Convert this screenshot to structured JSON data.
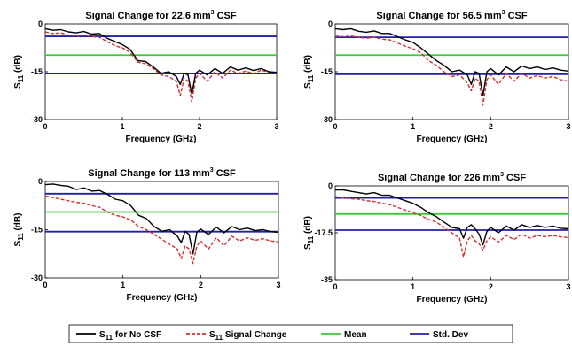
{
  "colors": {
    "no_csf": "#000000",
    "signal_change": "#d0312d",
    "mean": "#33cc33",
    "std_dev": "#1f1fa8"
  },
  "legend": {
    "placement": "bottom",
    "entries": [
      {
        "key": "no_csf",
        "label_main": "S",
        "label_sub": "11",
        "label_rest": " for No CSF"
      },
      {
        "key": "signal_change",
        "label_main": "S",
        "label_sub": "11",
        "label_rest": " Signal Change"
      },
      {
        "key": "mean",
        "label": "Mean"
      },
      {
        "key": "std_dev",
        "label": "Std. Dev"
      }
    ]
  },
  "chart_data": [
    {
      "type": "line",
      "title_prefix": "Signal Change for 22.6 mm",
      "title_sup": "3",
      "title_suffix": " CSF",
      "xlabel": "Frequency (GHz)",
      "ylabel_main": "S",
      "ylabel_sub": "11",
      "ylabel_rest": " (dB)",
      "xlim": [
        0,
        3
      ],
      "ylim": [
        -30,
        0
      ],
      "xticks": [
        0,
        1,
        2,
        3
      ],
      "yticks": [
        0,
        -15,
        -30
      ],
      "ytick_labels": [
        "0",
        "-15",
        "-30"
      ],
      "hlines": {
        "mean": -9.8,
        "std_dev_upper": -3.9,
        "std_dev_lower": -15.6
      },
      "series": [
        {
          "key": "no_csf",
          "style": "solid",
          "x": [
            0,
            0.1,
            0.2,
            0.3,
            0.4,
            0.5,
            0.6,
            0.7,
            0.8,
            0.9,
            1.0,
            1.1,
            1.2,
            1.3,
            1.4,
            1.5,
            1.6,
            1.7,
            1.75,
            1.8,
            1.85,
            1.9,
            1.95,
            2.0,
            2.1,
            2.2,
            2.3,
            2.4,
            2.5,
            2.6,
            2.7,
            2.8,
            2.9,
            3.0
          ],
          "y": [
            -1.5,
            -2.0,
            -1.8,
            -2.5,
            -2.8,
            -2.4,
            -3.2,
            -3.0,
            -4.5,
            -5.5,
            -6.5,
            -8.0,
            -11.5,
            -11.8,
            -13.5,
            -15.5,
            -15.0,
            -16.5,
            -19.0,
            -15.5,
            -16.0,
            -22.0,
            -15.5,
            -14.5,
            -16.0,
            -14.0,
            -15.5,
            -13.5,
            -14.5,
            -13.8,
            -14.6,
            -14.0,
            -15.0,
            -15.2
          ]
        },
        {
          "key": "signal_change",
          "style": "dashed",
          "x": [
            0,
            0.1,
            0.2,
            0.3,
            0.4,
            0.5,
            0.6,
            0.7,
            0.8,
            0.9,
            1.0,
            1.1,
            1.2,
            1.3,
            1.4,
            1.5,
            1.6,
            1.7,
            1.75,
            1.8,
            1.85,
            1.9,
            1.95,
            2.0,
            2.1,
            2.2,
            2.3,
            2.4,
            2.5,
            2.6,
            2.7,
            2.8,
            2.9,
            3.0
          ],
          "y": [
            -2.5,
            -3.0,
            -2.8,
            -3.5,
            -3.8,
            -3.5,
            -4.0,
            -4.2,
            -5.5,
            -6.8,
            -7.5,
            -9.0,
            -12.0,
            -12.5,
            -14.0,
            -16.0,
            -16.5,
            -18.0,
            -22.5,
            -17.0,
            -18.0,
            -24.5,
            -17.0,
            -15.5,
            -18.0,
            -15.0,
            -17.0,
            -14.5,
            -15.5,
            -14.8,
            -15.6,
            -14.5,
            -15.2,
            -15.5
          ]
        }
      ]
    },
    {
      "type": "line",
      "title_prefix": "Signal Change for 56.5 mm",
      "title_sup": "3",
      "title_suffix": " CSF",
      "xlabel": "Frequency (GHz)",
      "ylabel_main": "S",
      "ylabel_sub": "11",
      "ylabel_rest": " (dB)",
      "xlim": [
        0,
        3
      ],
      "ylim": [
        -30,
        0
      ],
      "xticks": [
        0,
        1,
        2,
        3
      ],
      "yticks": [
        0,
        -15,
        -30
      ],
      "ytick_labels": [
        "0",
        "-15",
        "-30"
      ],
      "hlines": {
        "mean": -9.8,
        "std_dev_upper": -4.2,
        "std_dev_lower": -15.8
      },
      "series": [
        {
          "key": "no_csf",
          "style": "solid",
          "x": [
            0,
            0.1,
            0.2,
            0.3,
            0.4,
            0.5,
            0.6,
            0.7,
            0.8,
            0.9,
            1.0,
            1.1,
            1.2,
            1.3,
            1.4,
            1.5,
            1.6,
            1.7,
            1.75,
            1.8,
            1.85,
            1.9,
            1.95,
            2.0,
            2.1,
            2.2,
            2.3,
            2.4,
            2.5,
            2.6,
            2.7,
            2.8,
            2.9,
            3.0
          ],
          "y": [
            -1.5,
            -1.8,
            -1.5,
            -2.3,
            -2.6,
            -2.2,
            -3.0,
            -3.0,
            -4.0,
            -5.0,
            -5.8,
            -7.5,
            -9.5,
            -11.5,
            -13.0,
            -15.0,
            -14.5,
            -16.0,
            -19.0,
            -15.0,
            -15.5,
            -22.5,
            -15.0,
            -14.0,
            -16.0,
            -13.5,
            -15.0,
            -13.2,
            -14.0,
            -13.5,
            -14.3,
            -13.8,
            -14.5,
            -14.8
          ]
        },
        {
          "key": "signal_change",
          "style": "dashed",
          "x": [
            0,
            0.1,
            0.2,
            0.3,
            0.4,
            0.5,
            0.6,
            0.7,
            0.8,
            0.9,
            1.0,
            1.1,
            1.2,
            1.3,
            1.4,
            1.5,
            1.6,
            1.7,
            1.75,
            1.8,
            1.85,
            1.9,
            1.95,
            2.0,
            2.1,
            2.2,
            2.3,
            2.4,
            2.5,
            2.6,
            2.7,
            2.8,
            2.9,
            3.0
          ],
          "y": [
            -3.5,
            -4.0,
            -3.8,
            -4.2,
            -4.5,
            -4.2,
            -4.8,
            -5.0,
            -6.0,
            -7.0,
            -7.8,
            -9.0,
            -11.5,
            -13.0,
            -15.0,
            -16.5,
            -16.0,
            -18.5,
            -21.0,
            -17.0,
            -18.0,
            -25.5,
            -17.5,
            -16.0,
            -19.0,
            -15.5,
            -18.0,
            -15.5,
            -17.0,
            -16.2,
            -17.0,
            -16.5,
            -17.5,
            -18.0
          ]
        }
      ]
    },
    {
      "type": "line",
      "title_prefix": "Signal Change for 113 mm",
      "title_sup": "3",
      "title_suffix": " CSF",
      "xlabel": "Frequency (GHz)",
      "ylabel_main": "S",
      "ylabel_sub": "11",
      "ylabel_rest": " (dB)",
      "xlim": [
        0,
        3
      ],
      "ylim": [
        -30,
        0
      ],
      "xticks": [
        0,
        1,
        2,
        3
      ],
      "yticks": [
        0,
        -15,
        -30
      ],
      "ytick_labels": [
        "0",
        "-15",
        "-30"
      ],
      "hlines": {
        "mean": -9.5,
        "std_dev_upper": -3.8,
        "std_dev_lower": -15.6
      },
      "series": [
        {
          "key": "no_csf",
          "style": "solid",
          "x": [
            0,
            0.1,
            0.2,
            0.3,
            0.4,
            0.5,
            0.6,
            0.7,
            0.8,
            0.9,
            1.0,
            1.1,
            1.2,
            1.3,
            1.4,
            1.5,
            1.6,
            1.7,
            1.75,
            1.8,
            1.85,
            1.9,
            1.95,
            2.0,
            2.1,
            2.2,
            2.3,
            2.4,
            2.5,
            2.6,
            2.7,
            2.8,
            2.9,
            3.0
          ],
          "y": [
            -1.0,
            -0.8,
            -1.2,
            -1.5,
            -2.5,
            -2.0,
            -3.0,
            -2.8,
            -4.0,
            -5.5,
            -6.0,
            -7.5,
            -10.5,
            -11.5,
            -14.0,
            -15.5,
            -15.0,
            -17.0,
            -19.0,
            -15.5,
            -16.5,
            -22.5,
            -15.8,
            -14.8,
            -16.5,
            -14.2,
            -16.0,
            -14.0,
            -15.0,
            -14.5,
            -15.3,
            -15.0,
            -15.6,
            -15.8
          ]
        },
        {
          "key": "signal_change",
          "style": "dashed",
          "x": [
            0,
            0.1,
            0.2,
            0.3,
            0.4,
            0.5,
            0.6,
            0.7,
            0.8,
            0.9,
            1.0,
            1.1,
            1.2,
            1.3,
            1.4,
            1.5,
            1.6,
            1.7,
            1.75,
            1.8,
            1.85,
            1.9,
            1.95,
            2.0,
            2.1,
            2.2,
            2.3,
            2.4,
            2.5,
            2.6,
            2.7,
            2.8,
            2.9,
            3.0
          ],
          "y": [
            -4.5,
            -5.0,
            -5.5,
            -6.0,
            -6.5,
            -6.8,
            -7.5,
            -8.0,
            -9.5,
            -10.5,
            -11.0,
            -12.0,
            -14.0,
            -15.0,
            -16.5,
            -18.0,
            -19.5,
            -21.0,
            -24.0,
            -20.0,
            -21.0,
            -25.5,
            -20.0,
            -18.5,
            -21.0,
            -17.5,
            -20.0,
            -17.0,
            -18.5,
            -17.5,
            -18.3,
            -17.8,
            -18.5,
            -18.8
          ]
        }
      ]
    },
    {
      "type": "line",
      "title_prefix": "Signal Change for 226 mm",
      "title_sup": "3",
      "title_suffix": " CSF",
      "xlabel": "Frequency (GHz)",
      "ylabel_main": "S",
      "ylabel_sub": "11",
      "ylabel_rest": " (dB)",
      "xlim": [
        0,
        3
      ],
      "ylim": [
        -35,
        0
      ],
      "xticks": [
        0,
        1,
        2,
        3
      ],
      "yticks": [
        0,
        -17.5,
        -35
      ],
      "ytick_labels": [
        "0",
        "-17.5",
        "-35"
      ],
      "hlines": {
        "mean": -10.5,
        "std_dev_upper": -4.5,
        "std_dev_lower": -16.5
      },
      "series": [
        {
          "key": "no_csf",
          "style": "solid",
          "x": [
            0,
            0.1,
            0.2,
            0.3,
            0.4,
            0.5,
            0.6,
            0.7,
            0.8,
            0.9,
            1.0,
            1.1,
            1.2,
            1.3,
            1.4,
            1.5,
            1.6,
            1.65,
            1.7,
            1.75,
            1.8,
            1.85,
            1.9,
            1.95,
            2.0,
            2.1,
            2.2,
            2.3,
            2.4,
            2.5,
            2.6,
            2.7,
            2.8,
            2.9,
            3.0
          ],
          "y": [
            -1.5,
            -1.5,
            -2.0,
            -2.5,
            -3.0,
            -2.5,
            -3.5,
            -3.5,
            -4.5,
            -5.5,
            -6.5,
            -8.0,
            -10.0,
            -11.5,
            -13.5,
            -15.5,
            -16.0,
            -19.5,
            -15.5,
            -14.5,
            -16.0,
            -18.0,
            -22.0,
            -17.0,
            -15.5,
            -17.5,
            -15.0,
            -16.5,
            -14.5,
            -15.5,
            -14.8,
            -15.5,
            -15.0,
            -15.8,
            -16.0
          ]
        },
        {
          "key": "signal_change",
          "style": "dashed",
          "x": [
            0,
            0.1,
            0.2,
            0.3,
            0.4,
            0.5,
            0.6,
            0.7,
            0.8,
            0.9,
            1.0,
            1.1,
            1.2,
            1.3,
            1.4,
            1.5,
            1.6,
            1.65,
            1.7,
            1.75,
            1.8,
            1.85,
            1.9,
            1.95,
            2.0,
            2.1,
            2.2,
            2.3,
            2.4,
            2.5,
            2.6,
            2.7,
            2.8,
            2.9,
            3.0
          ],
          "y": [
            -4.0,
            -4.5,
            -4.8,
            -5.0,
            -5.5,
            -5.8,
            -6.5,
            -7.0,
            -8.0,
            -9.0,
            -10.0,
            -11.0,
            -12.5,
            -13.5,
            -15.5,
            -17.5,
            -19.5,
            -26.5,
            -20.5,
            -18.5,
            -20.5,
            -21.5,
            -24.0,
            -20.5,
            -19.0,
            -21.0,
            -18.5,
            -20.0,
            -18.0,
            -19.5,
            -18.5,
            -19.0,
            -18.5,
            -19.0,
            -19.3
          ]
        }
      ]
    }
  ]
}
